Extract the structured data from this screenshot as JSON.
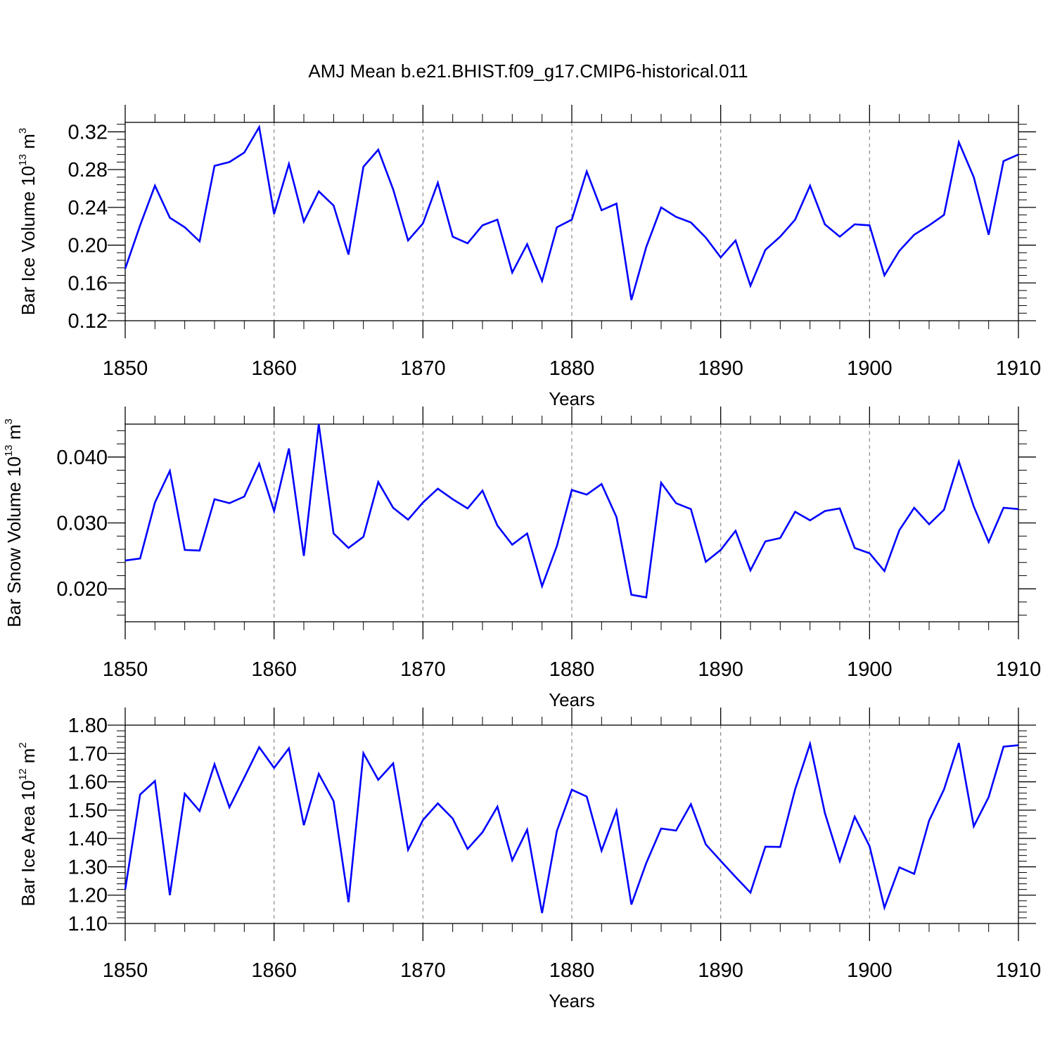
{
  "title": "AMJ Mean b.e21.BHIST.f09_g17.CMIP6-historical.011",
  "colors": {
    "series": "#0000ff",
    "axis": "#000000",
    "grid": "#888888"
  },
  "chart_data": [
    {
      "type": "line",
      "xlabel": "Years",
      "ylabel_main": "Bar Ice Volume 10",
      "ylabel_exp": "13",
      "ylabel_unit": " m",
      "ylabel_unit_exp": "3",
      "xlim": [
        1850,
        1910
      ],
      "ylim": [
        0.12,
        0.33
      ],
      "xticks": [
        "1850",
        "1860",
        "1870",
        "1880",
        "1890",
        "1900",
        "1910"
      ],
      "yticks": [
        "0.12",
        "0.16",
        "0.20",
        "0.24",
        "0.28",
        "0.32"
      ],
      "grid": "vertical dashed at major x ticks",
      "x": [
        1850,
        1851,
        1852,
        1853,
        1854,
        1855,
        1856,
        1857,
        1858,
        1859,
        1860,
        1861,
        1862,
        1863,
        1864,
        1865,
        1866,
        1867,
        1868,
        1869,
        1870,
        1871,
        1872,
        1873,
        1874,
        1875,
        1876,
        1877,
        1878,
        1879,
        1880,
        1881,
        1882,
        1883,
        1884,
        1885,
        1886,
        1887,
        1888,
        1889,
        1890,
        1891,
        1892,
        1893,
        1894,
        1895,
        1896,
        1897,
        1898,
        1899,
        1900,
        1901,
        1902,
        1903,
        1904,
        1905,
        1906,
        1907,
        1908,
        1909,
        1910
      ],
      "y": [
        0.175,
        0.221,
        0.263,
        0.229,
        0.219,
        0.204,
        0.284,
        0.288,
        0.298,
        0.325,
        0.233,
        0.286,
        0.225,
        0.257,
        0.242,
        0.19,
        0.283,
        0.301,
        0.259,
        0.205,
        0.223,
        0.266,
        0.209,
        0.202,
        0.221,
        0.227,
        0.171,
        0.201,
        0.162,
        0.219,
        0.227,
        0.278,
        0.237,
        0.244,
        0.142,
        0.198,
        0.24,
        0.23,
        0.224,
        0.208,
        0.187,
        0.205,
        0.157,
        0.195,
        0.209,
        0.227,
        0.263,
        0.222,
        0.209,
        0.222,
        0.221,
        0.168,
        0.194,
        0.211,
        0.221,
        0.232,
        0.309,
        0.272,
        0.211,
        0.289,
        0.296
      ]
    },
    {
      "type": "line",
      "xlabel": "Years",
      "ylabel_main": "Bar Snow Volume 10",
      "ylabel_exp": "13",
      "ylabel_unit": " m",
      "ylabel_unit_exp": "3",
      "xlim": [
        1850,
        1910
      ],
      "ylim": [
        0.015,
        0.045
      ],
      "xticks": [
        "1850",
        "1860",
        "1870",
        "1880",
        "1890",
        "1900",
        "1910"
      ],
      "yticks": [
        "0.020",
        "0.030",
        "0.040"
      ],
      "grid": "vertical dashed at major x ticks",
      "x": [
        1850,
        1851,
        1852,
        1853,
        1854,
        1855,
        1856,
        1857,
        1858,
        1859,
        1860,
        1861,
        1862,
        1863,
        1864,
        1865,
        1866,
        1867,
        1868,
        1869,
        1870,
        1871,
        1872,
        1873,
        1874,
        1875,
        1876,
        1877,
        1878,
        1879,
        1880,
        1881,
        1882,
        1883,
        1884,
        1885,
        1886,
        1887,
        1888,
        1889,
        1890,
        1891,
        1892,
        1893,
        1894,
        1895,
        1896,
        1897,
        1898,
        1899,
        1900,
        1901,
        1902,
        1903,
        1904,
        1905,
        1906,
        1907,
        1908,
        1909,
        1910
      ],
      "y": [
        0.0243,
        0.0246,
        0.0331,
        0.0379,
        0.0259,
        0.0258,
        0.0336,
        0.033,
        0.034,
        0.039,
        0.0318,
        0.0413,
        0.025,
        0.045,
        0.0284,
        0.0262,
        0.0279,
        0.0362,
        0.0323,
        0.0305,
        0.0331,
        0.0352,
        0.0336,
        0.0322,
        0.0349,
        0.0296,
        0.0267,
        0.0284,
        0.0204,
        0.0265,
        0.035,
        0.0343,
        0.0359,
        0.0309,
        0.0191,
        0.0187,
        0.0361,
        0.033,
        0.0321,
        0.0241,
        0.0259,
        0.0288,
        0.0228,
        0.0272,
        0.0277,
        0.0317,
        0.0304,
        0.0318,
        0.0322,
        0.0262,
        0.0254,
        0.0227,
        0.0289,
        0.0323,
        0.0298,
        0.032,
        0.0393,
        0.0325,
        0.0271,
        0.0323,
        0.0321
      ]
    },
    {
      "type": "line",
      "xlabel": "Years",
      "ylabel_main": "Bar Ice Area 10",
      "ylabel_exp": "12",
      "ylabel_unit": " m",
      "ylabel_unit_exp": "2",
      "xlim": [
        1850,
        1910
      ],
      "ylim": [
        1.1,
        1.8
      ],
      "xticks": [
        "1850",
        "1860",
        "1870",
        "1880",
        "1890",
        "1900",
        "1910"
      ],
      "yticks": [
        "1.10",
        "1.20",
        "1.30",
        "1.40",
        "1.50",
        "1.60",
        "1.70",
        "1.80"
      ],
      "grid": "vertical dashed at major x ticks",
      "x": [
        1850,
        1851,
        1852,
        1853,
        1854,
        1855,
        1856,
        1857,
        1858,
        1859,
        1860,
        1861,
        1862,
        1863,
        1864,
        1865,
        1866,
        1867,
        1868,
        1869,
        1870,
        1871,
        1872,
        1873,
        1874,
        1875,
        1876,
        1877,
        1878,
        1879,
        1880,
        1881,
        1882,
        1883,
        1884,
        1885,
        1886,
        1887,
        1888,
        1889,
        1890,
        1891,
        1892,
        1893,
        1894,
        1895,
        1896,
        1897,
        1898,
        1899,
        1900,
        1901,
        1902,
        1903,
        1904,
        1905,
        1906,
        1907,
        1908,
        1909,
        1910
      ],
      "y": [
        1.22,
        1.555,
        1.603,
        1.2,
        1.558,
        1.497,
        1.662,
        1.51,
        1.615,
        1.722,
        1.649,
        1.718,
        1.447,
        1.628,
        1.532,
        1.175,
        1.701,
        1.607,
        1.665,
        1.36,
        1.465,
        1.524,
        1.47,
        1.363,
        1.422,
        1.512,
        1.323,
        1.431,
        1.137,
        1.427,
        1.572,
        1.548,
        1.357,
        1.498,
        1.167,
        1.313,
        1.435,
        1.428,
        1.521,
        1.379,
        1.321,
        1.264,
        1.209,
        1.371,
        1.37,
        1.573,
        1.734,
        1.49,
        1.32,
        1.477,
        1.373,
        1.156,
        1.298,
        1.275,
        1.463,
        1.573,
        1.737,
        1.443,
        1.546,
        1.724,
        1.729
      ]
    }
  ]
}
